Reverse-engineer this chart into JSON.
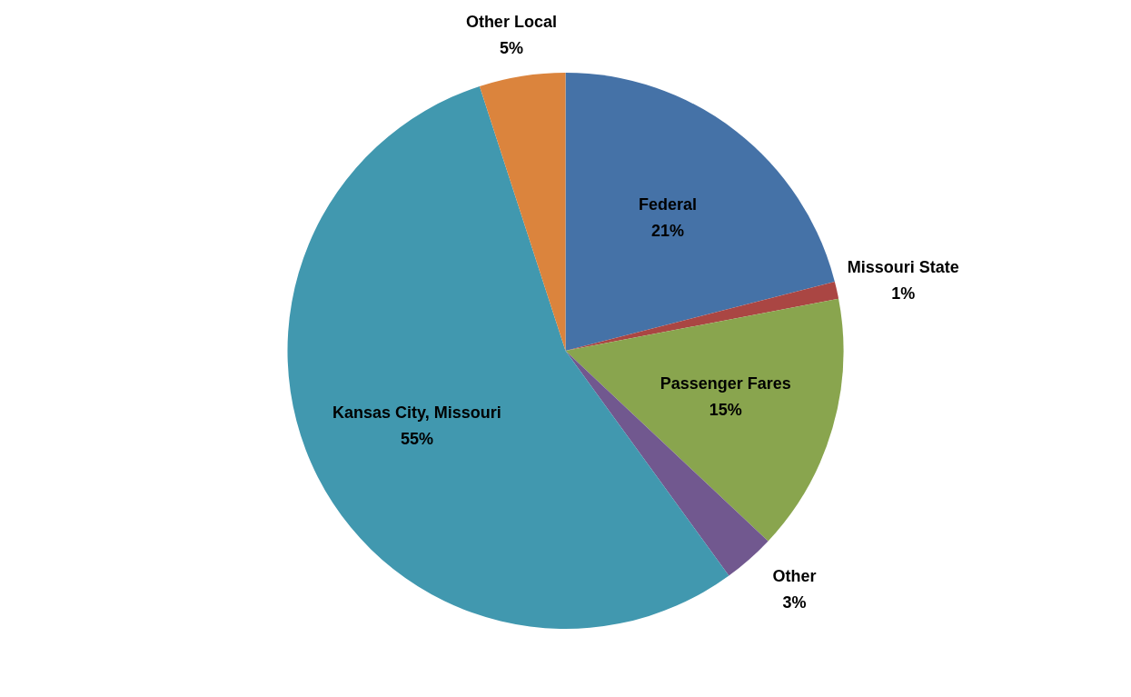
{
  "chart_data": {
    "type": "pie",
    "categories": [
      "Federal",
      "Missouri State",
      "Passenger Fares",
      "Other",
      "Kansas City, Missouri",
      "Other Local"
    ],
    "values": [
      21,
      1,
      15,
      3,
      55,
      5
    ],
    "value_labels": [
      "21%",
      "1%",
      "15%",
      "3%",
      "55%",
      "5%"
    ],
    "colors": [
      "#4572a7",
      "#aa4643",
      "#89a54e",
      "#71588f",
      "#4198af",
      "#db843d"
    ],
    "legend": false
  }
}
